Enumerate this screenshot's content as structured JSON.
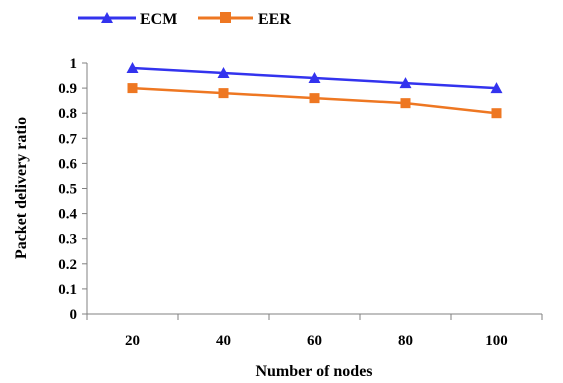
{
  "chart_data": {
    "type": "line",
    "x": [
      20,
      40,
      60,
      80,
      100
    ],
    "xlabel": "Number of nodes",
    "ylabel": "Packet delivery ratio",
    "ylim": [
      0,
      1
    ],
    "yticks": [
      "0",
      "0.1",
      "0.2",
      "0.3",
      "0.4",
      "0.5",
      "0.6",
      "0.7",
      "0.8",
      "0.9",
      "1"
    ],
    "xticks": [
      "20",
      "40",
      "60",
      "80",
      "100"
    ],
    "grid": false,
    "legend_position": "top-left",
    "series": [
      {
        "name": "ECM",
        "color": "#3333ee",
        "marker": "triangle",
        "values": [
          0.98,
          0.96,
          0.94,
          0.92,
          0.9
        ]
      },
      {
        "name": "EER",
        "color": "#ee7722",
        "marker": "square",
        "values": [
          0.9,
          0.88,
          0.86,
          0.84,
          0.8
        ]
      }
    ]
  }
}
